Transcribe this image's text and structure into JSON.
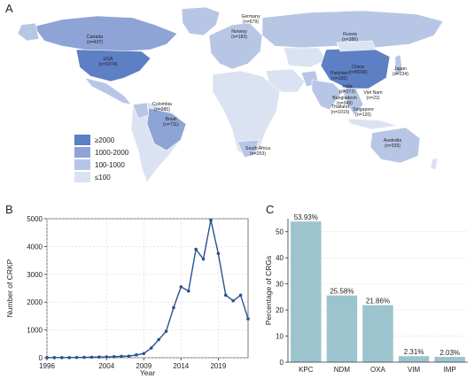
{
  "panels": {
    "a": "A",
    "b": "B",
    "c": "C"
  },
  "map": {
    "legend": [
      "≥2000",
      "1000-2000",
      "100-1000",
      "≤100"
    ],
    "colors": [
      "#5d7fc4",
      "#8ea3d6",
      "#b8c6e6",
      "#dbe3f2"
    ],
    "land": "#e8edf7",
    "labels": [
      {
        "name": "Canada",
        "count": "(n=437)"
      },
      {
        "name": "USA",
        "count": "(n=1974)"
      },
      {
        "name": "Germany",
        "count": "(n=679)"
      },
      {
        "name": "Norway",
        "count": "(n=183)"
      },
      {
        "name": "Russia",
        "count": "(n=386)"
      },
      {
        "name": "China",
        "count": "(n=8936)"
      },
      {
        "name": "Japan",
        "count": "(n=234)"
      },
      {
        "name": "Pakistan",
        "count": "(n=165)"
      },
      {
        "name": "India",
        "count": "(n=372)"
      },
      {
        "name": "Bangladesh",
        "count": "(n=349)"
      },
      {
        "name": "Thailand",
        "count": "(n=1015)"
      },
      {
        "name": "Viet Nam",
        "count": "(n=22)"
      },
      {
        "name": "Singapore",
        "count": "(n=120)"
      },
      {
        "name": "Colombia",
        "count": "(n=285)"
      },
      {
        "name": "Brazil",
        "count": "(n=711)"
      },
      {
        "name": "South Africa",
        "count": "(n=253)"
      },
      {
        "name": "Australia",
        "count": "(n=339)"
      }
    ]
  },
  "chart_data": [
    {
      "type": "line",
      "xlabel": "Year",
      "ylabel": "Number of CRKP",
      "xlim": [
        1996,
        2023
      ],
      "ylim": [
        0,
        5000
      ],
      "xticks": [
        1996,
        2004,
        2009,
        2014,
        2019
      ],
      "yticks": [
        0,
        1000,
        2000,
        3000,
        4000,
        5000
      ],
      "color": "#2a5190",
      "x": [
        1996,
        1997,
        1998,
        1999,
        2000,
        2001,
        2002,
        2003,
        2004,
        2005,
        2006,
        2007,
        2008,
        2009,
        2010,
        2011,
        2012,
        2013,
        2014,
        2015,
        2016,
        2017,
        2018,
        2019,
        2020,
        2021,
        2022,
        2023
      ],
      "y": [
        5,
        5,
        5,
        5,
        10,
        15,
        20,
        25,
        30,
        40,
        50,
        60,
        100,
        150,
        350,
        650,
        950,
        1800,
        2550,
        2400,
        3900,
        3550,
        4950,
        3750,
        2250,
        2050,
        2250,
        1400
      ]
    },
    {
      "type": "bar",
      "ylabel": "Percentage of CRGs",
      "ylim": [
        0,
        55
      ],
      "yticks": [
        0,
        10,
        20,
        30,
        40,
        50
      ],
      "categories": [
        "KPC",
        "NDM",
        "OXA",
        "VIM",
        "IMP"
      ],
      "values": [
        53.93,
        25.58,
        21.86,
        2.31,
        2.03
      ],
      "value_labels": [
        "53.93%",
        "25.58%",
        "21.86%",
        "2.31%",
        "2.03%"
      ],
      "color": "#9cc4cf"
    }
  ]
}
